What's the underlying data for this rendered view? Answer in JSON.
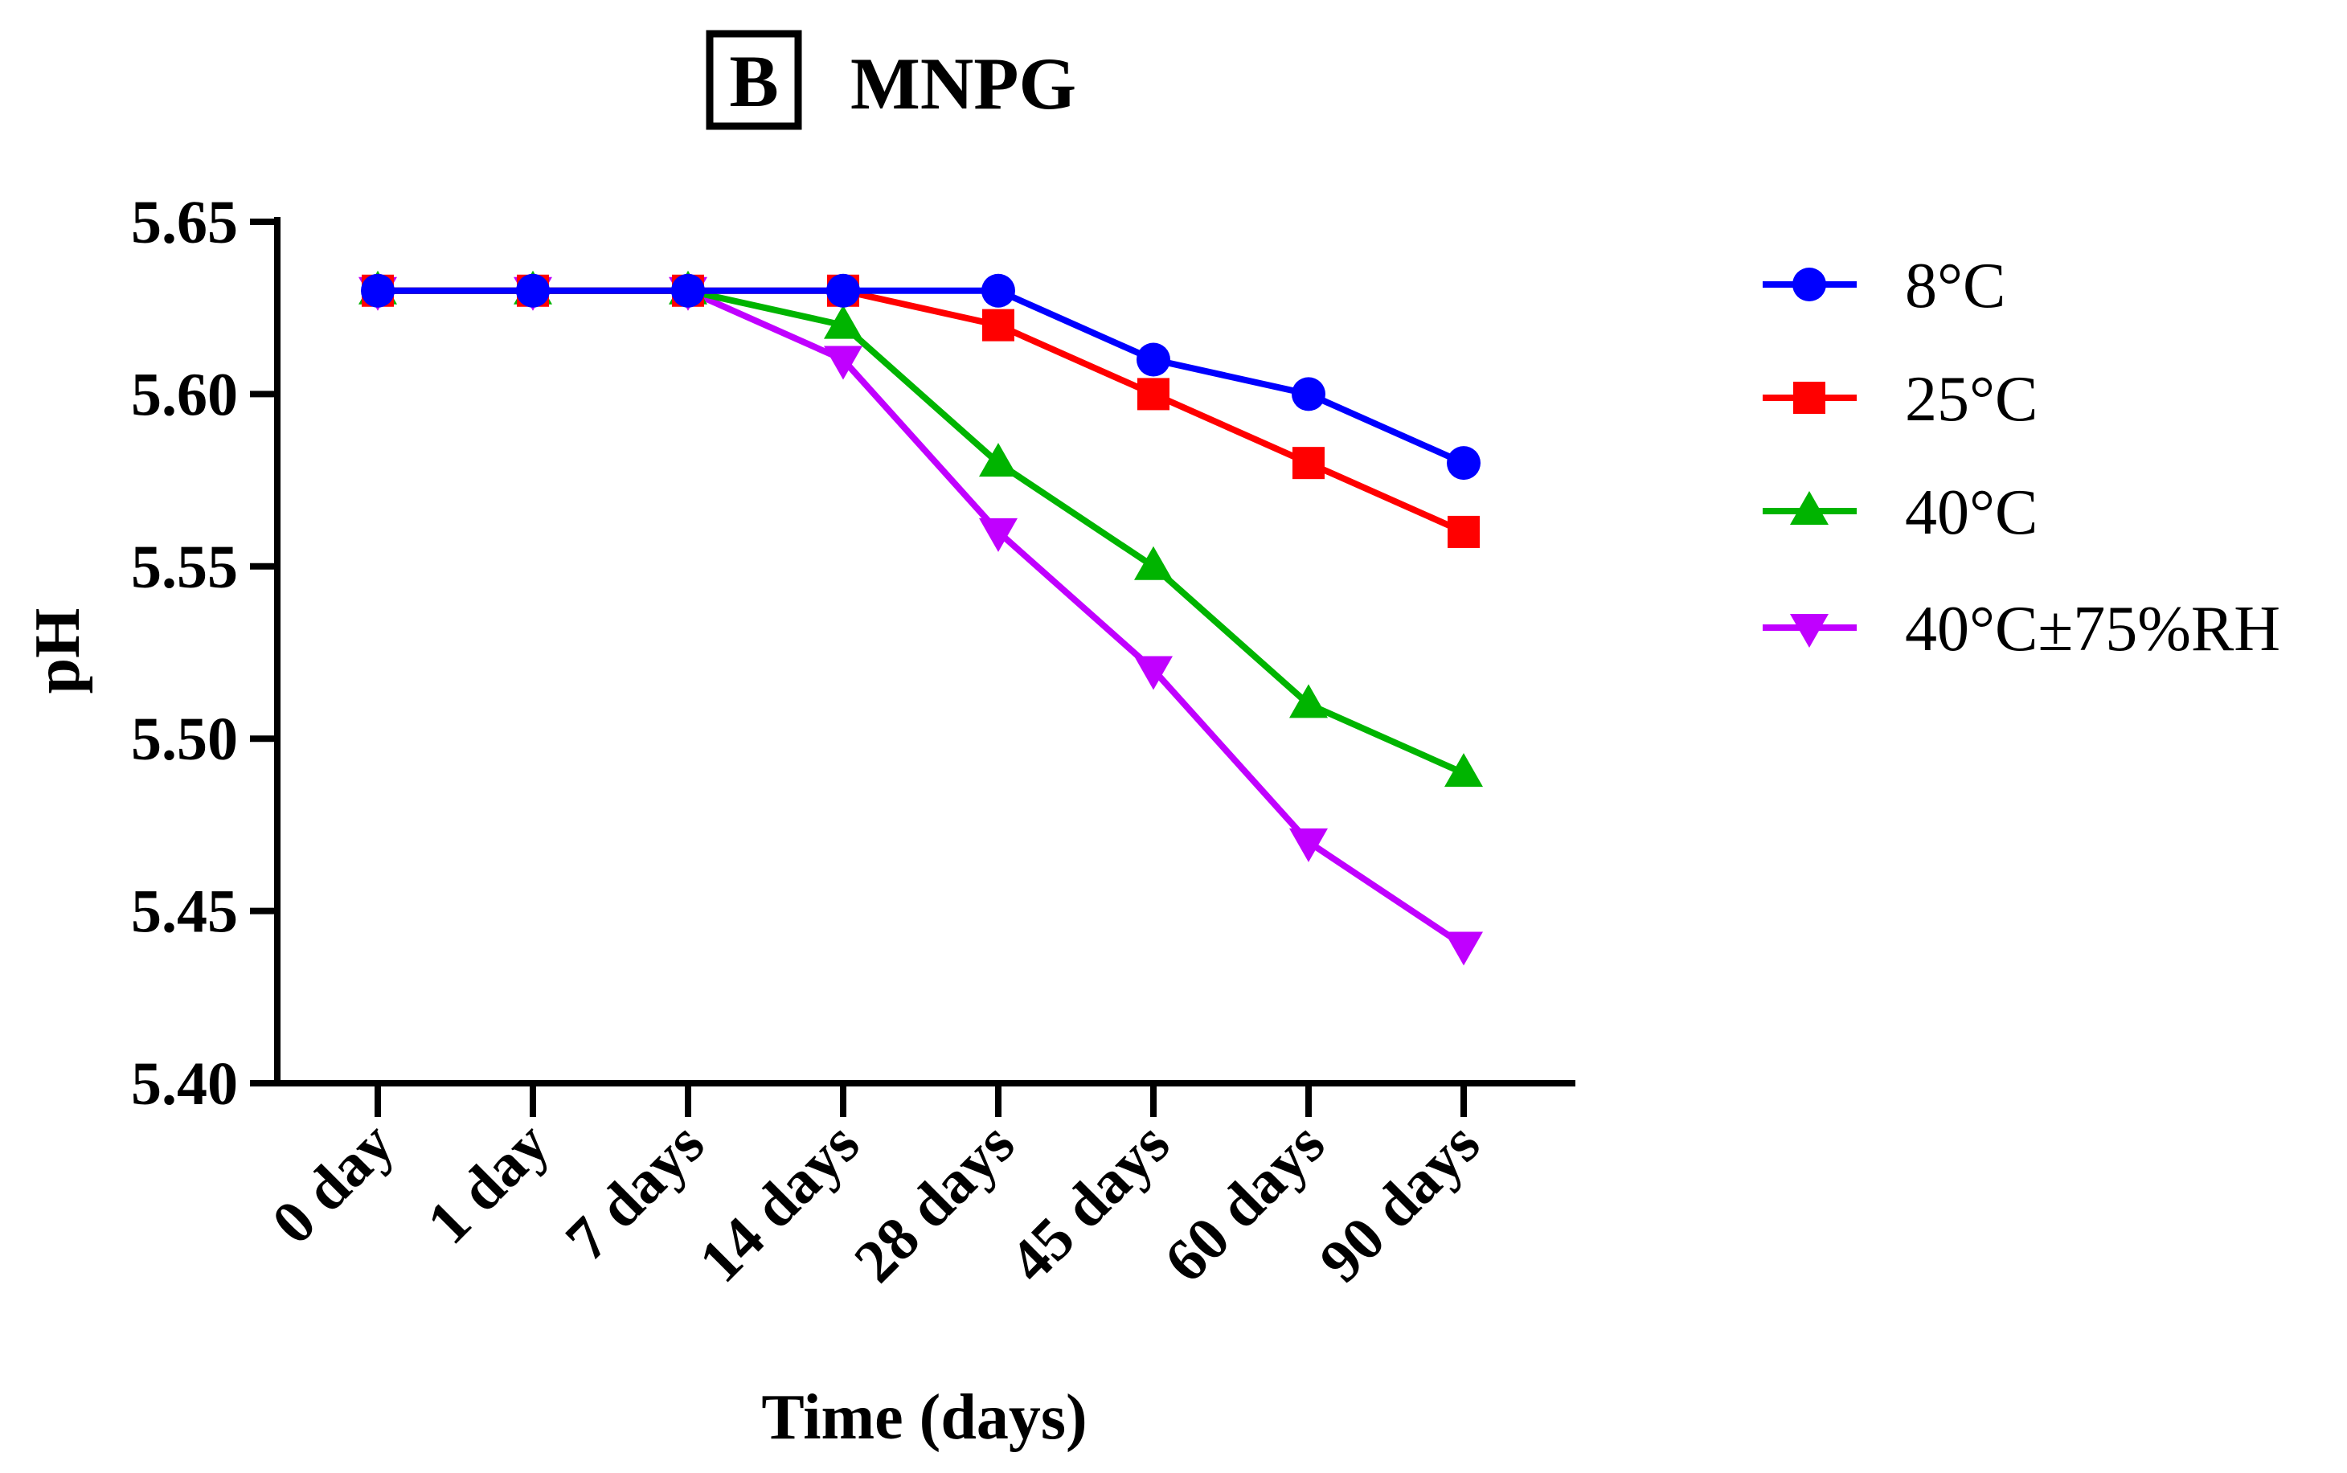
{
  "panel_label": "B",
  "title": "MNPG",
  "chart_data": {
    "type": "line",
    "title": "MNPG",
    "xlabel": "Time (days)",
    "ylabel": "pH",
    "categories": [
      "0 day",
      "1 day",
      "7 days",
      "14 days",
      "28 days",
      "45 days",
      "60 days",
      "90 days"
    ],
    "ylim": [
      5.4,
      5.65
    ],
    "yticks": [
      "5.40",
      "5.45",
      "5.50",
      "5.55",
      "5.60",
      "5.65"
    ],
    "grid": false,
    "legend_position": "right",
    "series": [
      {
        "name": "8°C",
        "color": "#0000ff",
        "marker": "circle",
        "values": [
          5.63,
          5.63,
          5.63,
          5.63,
          5.63,
          5.61,
          5.6,
          5.58
        ]
      },
      {
        "name": "25°C",
        "color": "#ff0000",
        "marker": "square",
        "values": [
          5.63,
          5.63,
          5.63,
          5.63,
          5.62,
          5.6,
          5.58,
          5.56
        ]
      },
      {
        "name": "40°C",
        "color": "#00b400",
        "marker": "triangle-up",
        "values": [
          5.63,
          5.63,
          5.63,
          5.62,
          5.58,
          5.55,
          5.51,
          5.49
        ]
      },
      {
        "name": "40°C±75%RH",
        "color": "#c000ff",
        "marker": "triangle-down",
        "values": [
          5.63,
          5.63,
          5.63,
          5.61,
          5.56,
          5.52,
          5.47,
          5.44
        ]
      }
    ]
  }
}
